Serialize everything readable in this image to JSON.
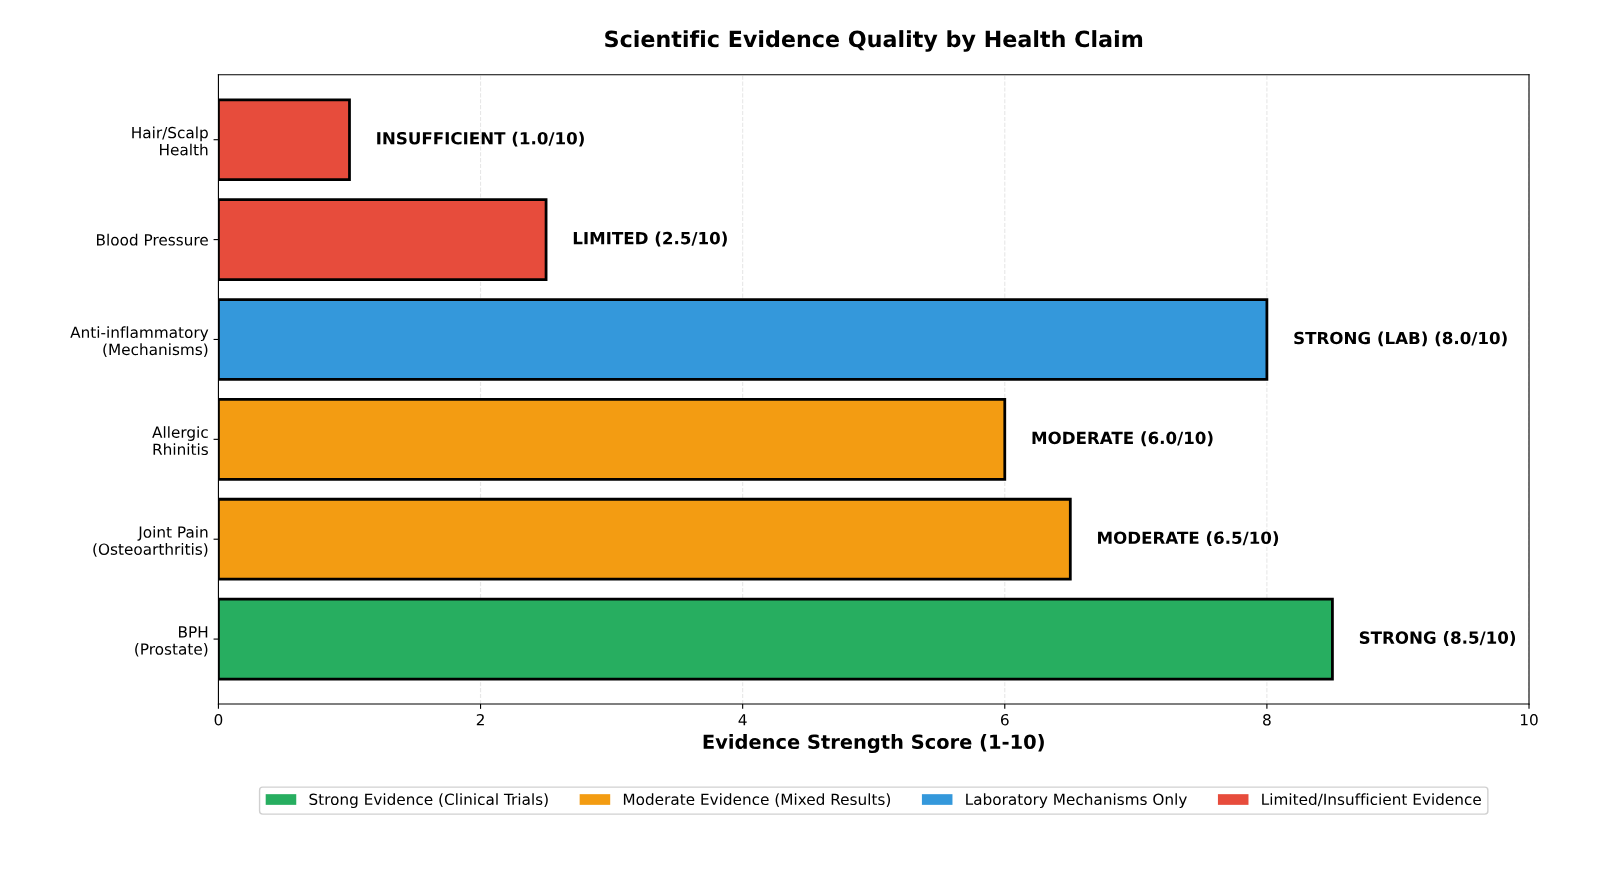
{
  "chart_data": {
    "type": "bar",
    "orientation": "horizontal",
    "title": "Scientific Evidence Quality by Health Claim",
    "xlabel": "Evidence Strength Score (1-10)",
    "categories": [
      "Hair/Scalp\nHealth",
      "Blood Pressure",
      "Anti-inflammatory\n(Mechanisms)",
      "Allergic\nRhinitis",
      "Joint Pain\n(Osteoarthritis)",
      "BPH\n(Prostate)"
    ],
    "series": [
      {
        "name": "Strong Evidence (Clinical Trials)",
        "color": "#27ae60",
        "values": [
          null,
          null,
          null,
          null,
          null,
          8.5
        ],
        "value_labels": [
          null,
          null,
          null,
          null,
          null,
          "STRONG (8.5/10)"
        ]
      },
      {
        "name": "Moderate Evidence (Mixed Results)",
        "color": "#f39c12",
        "values": [
          null,
          null,
          null,
          6.0,
          6.5,
          null
        ],
        "value_labels": [
          null,
          null,
          null,
          "MODERATE (6.0/10)",
          "MODERATE (6.5/10)",
          null
        ]
      },
      {
        "name": "Laboratory Mechanisms Only",
        "color": "#3498db",
        "values": [
          null,
          null,
          8.0,
          null,
          null,
          null
        ],
        "value_labels": [
          null,
          null,
          "STRONG (LAB) (8.0/10)",
          null,
          null,
          null
        ]
      },
      {
        "name": "Limited/Insufficient Evidence",
        "color": "#e74c3c",
        "values": [
          1.0,
          2.5,
          null,
          null,
          null,
          null
        ],
        "value_labels": [
          "INSUFFICIENT (1.0/10)",
          "LIMITED (2.5/10)",
          null,
          null,
          null,
          null
        ]
      }
    ],
    "xlim": [
      0,
      10
    ],
    "xticks": [
      0,
      2,
      4,
      6,
      8,
      10
    ],
    "grid": "x",
    "legend": "bottom"
  }
}
